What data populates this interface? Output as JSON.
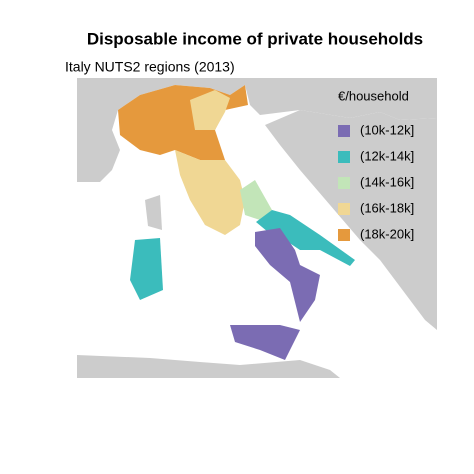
{
  "title": "Disposable income of private households",
  "subtitle": "Italy NUTS2 regions (2013)",
  "legend": {
    "title": "€/household",
    "items": [
      {
        "label": "(10k-12k]",
        "color": "#7b6cb3"
      },
      {
        "label": "(12k-14k]",
        "color": "#3bbcbc"
      },
      {
        "label": "(14k-16k]",
        "color": "#c2e5b8"
      },
      {
        "label": "(16k-18k]",
        "color": "#f0d794"
      },
      {
        "label": "(18k-20k]",
        "color": "#e5993d"
      }
    ]
  }
}
